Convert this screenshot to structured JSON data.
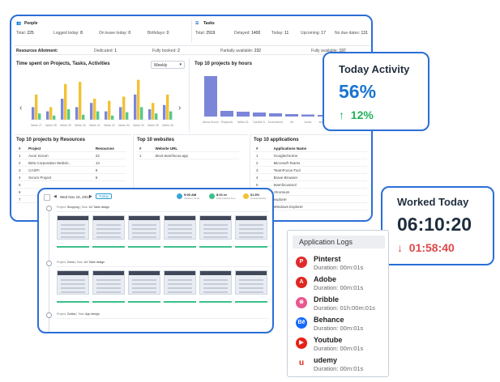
{
  "people": {
    "title": "People",
    "stats": [
      {
        "label": "Total:",
        "value": "225"
      },
      {
        "label": "Logged today:",
        "value": "8"
      },
      {
        "label": "On leave today:",
        "value": "0"
      },
      {
        "label": "Birthdays:",
        "value": "0"
      }
    ]
  },
  "tasks": {
    "title": "Tasks",
    "stats": [
      {
        "label": "Total:",
        "value": "2919"
      },
      {
        "label": "Delayed:",
        "value": "1400"
      },
      {
        "label": "Today:",
        "value": "11"
      },
      {
        "label": "Upcoming:",
        "value": "17"
      },
      {
        "label": "No due dates:",
        "value": "131"
      }
    ]
  },
  "allotment": {
    "title": "Resources Allotment:",
    "stats": [
      {
        "label": "Dedicated:",
        "value": "1"
      },
      {
        "label": "Fully booked:",
        "value": "2"
      },
      {
        "label": "Partially available:",
        "value": "232"
      },
      {
        "label": "Fully available:",
        "value": "197"
      }
    ]
  },
  "time_chart": {
    "title": "Time spent on Projects, Tasks, Activities",
    "select": "Weekly",
    "prev": "‹",
    "next": "›",
    "categories": [
      "Week 27",
      "Week 28",
      "Week 29",
      "Week 30",
      "Week 31",
      "Week 32",
      "Week 33",
      "Week 34",
      "Week 35",
      "Week 36"
    ],
    "series": [
      {
        "color": "#7b86d9",
        "values": [
          0.3,
          0.2,
          0.5,
          0.3,
          0.4,
          0.2,
          0.3,
          0.6,
          0.25,
          0.35
        ]
      },
      {
        "color": "#f2c233",
        "values": [
          0.6,
          0.3,
          0.85,
          0.9,
          0.5,
          0.45,
          0.55,
          0.95,
          0.4,
          0.6
        ]
      },
      {
        "color": "#55c98b",
        "values": [
          0.15,
          0.1,
          0.25,
          0.12,
          0.2,
          0.1,
          0.18,
          0.3,
          0.15,
          0.2
        ]
      }
    ]
  },
  "top_projects_chart": {
    "title": "Top 10 projects by hours",
    "categories": [
      "Alexa Scrum",
      "Playbook",
      "Week 01",
      "Camille S.",
      "Ecommerce",
      "Kit",
      "Acme",
      "test Proj",
      "Demo",
      "Ok"
    ],
    "values": [
      1.0,
      0.14,
      0.12,
      0.1,
      0.08,
      0.06,
      0.05,
      0.04,
      0.03,
      0.03
    ],
    "color": "#7b86d9"
  },
  "resources_table": {
    "title": "Top 10 projects by Resources",
    "headers": [
      "#",
      "Project",
      "Resources"
    ],
    "rows": [
      [
        "1",
        "Axon Scrum",
        "22"
      ],
      [
        "2",
        "Birla Corporation Websit...",
        "13"
      ],
      [
        "3",
        "CASPI",
        "9"
      ],
      [
        "4",
        "Scrum Project",
        "8"
      ],
      [
        "5",
        "",
        ""
      ],
      [
        "6",
        "",
        ""
      ],
      [
        "7",
        "",
        ""
      ]
    ]
  },
  "websites_table": {
    "title": "Top 10 websites",
    "headers": [
      "#",
      "Website URL"
    ],
    "rows": [
      [
        "1",
        "dev2.teamfocus.app"
      ]
    ]
  },
  "apps_table": {
    "title": "Top 10 applications",
    "headers": [
      "#",
      "Applications Name"
    ],
    "rows": [
      [
        "1",
        "Googlechrome"
      ],
      [
        "2",
        "Microsoft Teams"
      ],
      [
        "3",
        "TeamFocus-Tool"
      ],
      [
        "4",
        "Brave Browser"
      ],
      [
        "5",
        "teamfocustool"
      ],
      [
        "6",
        "chromium"
      ],
      [
        "7",
        "explorer"
      ],
      [
        "8",
        "Windows Explorer"
      ]
    ]
  },
  "screenshots": {
    "date": "Wed Nov 15, 2023",
    "today_label": "Today",
    "stats": [
      {
        "value": "9:00 AM",
        "label": "Check-in Time",
        "color": "#38a6d8"
      },
      {
        "value": "8:01 hr",
        "label": "Total tracked time",
        "color": "#3cc08a"
      },
      {
        "value": "61.5%",
        "label": "Overall activity",
        "color": "#f2c233"
      }
    ],
    "groups": [
      {
        "project_label": "Project:",
        "project": "Shopping",
        "task_label": "Task:",
        "task": "UX Table design"
      },
      {
        "project_label": "Project:",
        "project": "Zoma",
        "task_label": "Task:",
        "task": "UX Table design"
      },
      {
        "project_label": "Project:",
        "project": "Zudica",
        "task_label": "Task:",
        "task": "App design"
      }
    ]
  },
  "today_activity": {
    "title": "Today Activity",
    "value": "56%",
    "change": "12%",
    "arrow": "↑"
  },
  "worked_today": {
    "title": "Worked Today",
    "value": "06:10:20",
    "change": "01:58:40",
    "arrow": "↓"
  },
  "app_logs": {
    "title": "Application Logs",
    "items": [
      {
        "name": "Pinterst",
        "duration": "Duration: 00m:01s",
        "icon": "pinterest-icon",
        "glyph": "P",
        "color": "#e02b2b"
      },
      {
        "name": "Adobe",
        "duration": "Duration: 00m:01s",
        "icon": "adobe-icon",
        "glyph": "A",
        "color": "#e0261f"
      },
      {
        "name": "Dribble",
        "duration": "Duration: 01h:00m:01s",
        "icon": "dribbble-icon",
        "glyph": "⊛",
        "color": "#e9578f"
      },
      {
        "name": "Behance",
        "duration": "Duration: 00m:01s",
        "icon": "behance-icon",
        "glyph": "Bē",
        "color": "#1769ff"
      },
      {
        "name": "Youtube",
        "duration": "Duration: 00m:01s",
        "icon": "youtube-icon",
        "glyph": "▶",
        "color": "#e62117"
      },
      {
        "name": "udemy",
        "duration": "Duration: 00m:01s",
        "icon": "udemy-icon",
        "glyph": "u",
        "color": "#ffffff"
      }
    ]
  }
}
